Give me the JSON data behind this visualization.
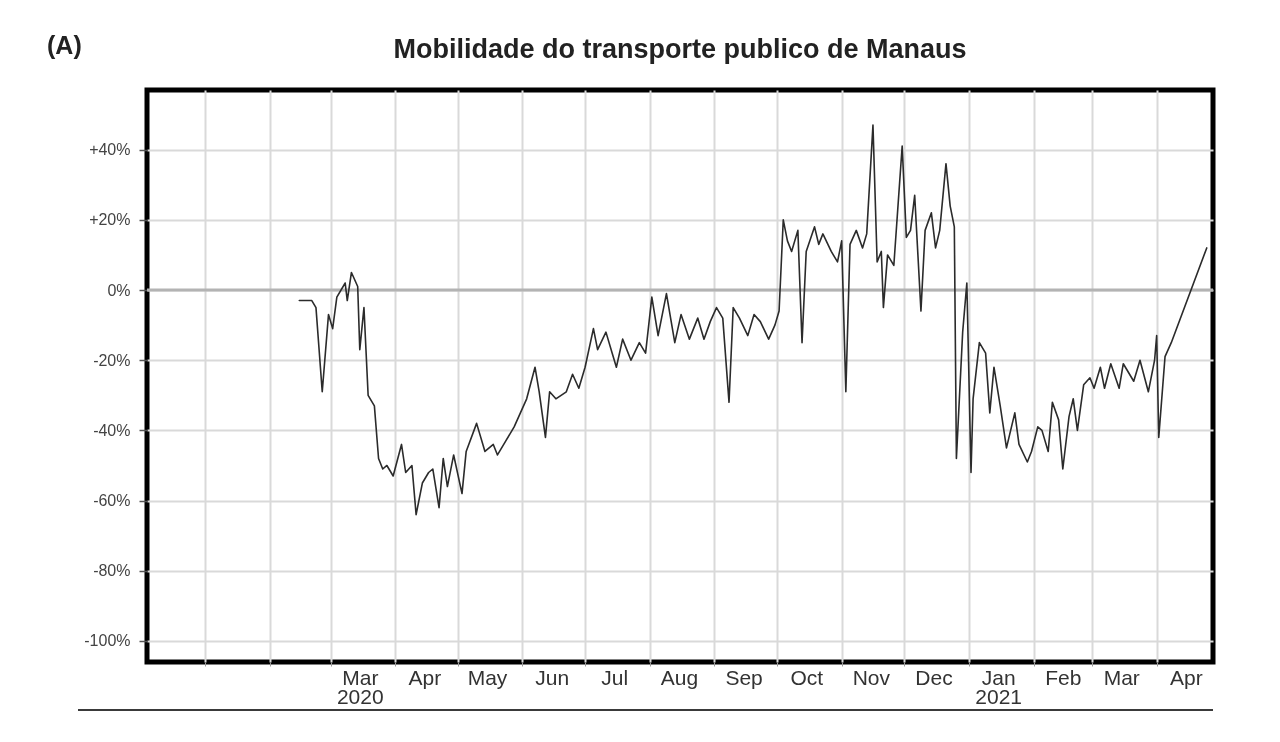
{
  "chart_data": {
    "type": "line",
    "title": "Mobilidade do transporte publico de Manaus",
    "annotations": [
      "(A)"
    ],
    "x": [
      "2020-02-15",
      "2020-02-21",
      "2020-02-23",
      "2020-02-26",
      "2020-02-29",
      "2020-03-02",
      "2020-03-04",
      "2020-03-08",
      "2020-03-09",
      "2020-03-11",
      "2020-03-14",
      "2020-03-15",
      "2020-03-17",
      "2020-03-19",
      "2020-03-22",
      "2020-03-24",
      "2020-03-26",
      "2020-03-28",
      "2020-03-31",
      "2020-04-04",
      "2020-04-06",
      "2020-04-09",
      "2020-04-11",
      "2020-04-14",
      "2020-04-17",
      "2020-04-19",
      "2020-04-22",
      "2020-04-24",
      "2020-04-26",
      "2020-04-29",
      "2020-05-03",
      "2020-05-05",
      "2020-05-10",
      "2020-05-14",
      "2020-05-18",
      "2020-05-20",
      "2020-05-24",
      "2020-05-28",
      "2020-05-31",
      "2020-06-03",
      "2020-06-07",
      "2020-06-09",
      "2020-06-12",
      "2020-06-14",
      "2020-06-17",
      "2020-06-22",
      "2020-06-25",
      "2020-06-28",
      "2020-07-01",
      "2020-07-05",
      "2020-07-07",
      "2020-07-11",
      "2020-07-14",
      "2020-07-16",
      "2020-07-19",
      "2020-07-23",
      "2020-07-27",
      "2020-07-30",
      "2020-08-02",
      "2020-08-05",
      "2020-08-09",
      "2020-08-13",
      "2020-08-16",
      "2020-08-20",
      "2020-08-24",
      "2020-08-27",
      "2020-08-30",
      "2020-09-02",
      "2020-09-05",
      "2020-09-08",
      "2020-09-10",
      "2020-09-13",
      "2020-09-17",
      "2020-09-20",
      "2020-09-23",
      "2020-09-27",
      "2020-09-30",
      "2020-10-02",
      "2020-10-04",
      "2020-10-06",
      "2020-10-08",
      "2020-10-11",
      "2020-10-13",
      "2020-10-15",
      "2020-10-19",
      "2020-10-21",
      "2020-10-23",
      "2020-10-27",
      "2020-10-30",
      "2020-11-01",
      "2020-11-03",
      "2020-11-05",
      "2020-11-08",
      "2020-11-11",
      "2020-11-13",
      "2020-11-16",
      "2020-11-18",
      "2020-11-20",
      "2020-11-21",
      "2020-11-23",
      "2020-11-26",
      "2020-11-30",
      "2020-12-02",
      "2020-12-04",
      "2020-12-06",
      "2020-12-09",
      "2020-12-11",
      "2020-12-14",
      "2020-12-16",
      "2020-12-18",
      "2020-12-21",
      "2020-12-23",
      "2020-12-25",
      "2020-12-26",
      "2020-12-29",
      "2020-12-31",
      "2021-01-02",
      "2021-01-03",
      "2021-01-06",
      "2021-01-09",
      "2021-01-11",
      "2021-01-13",
      "2021-01-16",
      "2021-01-19",
      "2021-01-23",
      "2021-01-25",
      "2021-01-29",
      "2021-01-31",
      "2021-02-03",
      "2021-02-05",
      "2021-02-08",
      "2021-02-10",
      "2021-02-13",
      "2021-02-15",
      "2021-02-18",
      "2021-02-20",
      "2021-02-22",
      "2021-02-25",
      "2021-02-28",
      "2021-03-02",
      "2021-03-05",
      "2021-03-07",
      "2021-03-10",
      "2021-03-14",
      "2021-03-16",
      "2021-03-21",
      "2021-03-24",
      "2021-03-28",
      "2021-03-31",
      "2021-04-01",
      "2021-04-02",
      "2021-04-05",
      "2021-04-08",
      "2021-04-25"
    ],
    "series": [
      {
        "color": "#2b2b2b",
        "values": [
          -3,
          -3,
          -5,
          -29,
          -7,
          -11,
          -2,
          2,
          -3,
          5,
          1,
          -17,
          -5,
          -30,
          -33,
          -48,
          -51,
          -50,
          -53,
          -44,
          -52,
          -50,
          -64,
          -55,
          -52,
          -51,
          -62,
          -48,
          -56,
          -47,
          -58,
          -46,
          -38,
          -46,
          -44,
          -47,
          -43,
          -39,
          -35,
          -31,
          -22,
          -29,
          -42,
          -29,
          -31,
          -29,
          -24,
          -28,
          -22,
          -11,
          -17,
          -12,
          -18,
          -22,
          -14,
          -20,
          -15,
          -18,
          -2,
          -13,
          -1,
          -15,
          -7,
          -14,
          -8,
          -14,
          -9,
          -5,
          -8,
          -32,
          -5,
          -8,
          -13,
          -7,
          -9,
          -14,
          -10,
          -6,
          20,
          14,
          11,
          17,
          -15,
          11,
          18,
          13,
          16,
          11,
          8,
          14,
          -29,
          13,
          17,
          12,
          16,
          47,
          8,
          11,
          -5,
          10,
          7,
          41,
          15,
          17,
          27,
          -6,
          17,
          22,
          12,
          17,
          36,
          24,
          18,
          -48,
          -12,
          2,
          -52,
          -31,
          -15,
          -18,
          -35,
          -22,
          -33,
          -45,
          -35,
          -44,
          -49,
          -46,
          -39,
          -40,
          -46,
          -32,
          -37,
          -51,
          -36,
          -31,
          -40,
          -27,
          -25,
          -28,
          -22,
          -28,
          -21,
          -28,
          -21,
          -26,
          -20,
          -29,
          -20,
          -13,
          -42,
          -19,
          -15,
          12
        ]
      }
    ],
    "xlim": [
      "2019-12-04",
      "2021-04-28"
    ],
    "xticks": [
      {
        "value": "2020-01-01",
        "label": null
      },
      {
        "value": "2020-02-01",
        "label": null
      },
      {
        "value": "2020-03-01",
        "label": null
      },
      {
        "value": "2020-03-15",
        "label": "Mar\n2020"
      },
      {
        "value": "2020-04-01",
        "label": null
      },
      {
        "value": "2020-04-15",
        "label": "Apr"
      },
      {
        "value": "2020-05-01",
        "label": null
      },
      {
        "value": "2020-05-15",
        "label": "May"
      },
      {
        "value": "2020-06-01",
        "label": null
      },
      {
        "value": "2020-06-15",
        "label": "Jun"
      },
      {
        "value": "2020-07-01",
        "label": null
      },
      {
        "value": "2020-07-15",
        "label": "Jul"
      },
      {
        "value": "2020-08-01",
        "label": null
      },
      {
        "value": "2020-08-15",
        "label": "Aug"
      },
      {
        "value": "2020-09-01",
        "label": null
      },
      {
        "value": "2020-09-15",
        "label": "Sep"
      },
      {
        "value": "2020-10-01",
        "label": null
      },
      {
        "value": "2020-10-15",
        "label": "Oct"
      },
      {
        "value": "2020-11-01",
        "label": null
      },
      {
        "value": "2020-11-15",
        "label": "Nov"
      },
      {
        "value": "2020-12-01",
        "label": null
      },
      {
        "value": "2020-12-15",
        "label": "Dec"
      },
      {
        "value": "2021-01-01",
        "label": null
      },
      {
        "value": "2021-01-15",
        "label": "Jan\n2021"
      },
      {
        "value": "2021-02-01",
        "label": null
      },
      {
        "value": "2021-02-15",
        "label": "Feb"
      },
      {
        "value": "2021-03-01",
        "label": null
      },
      {
        "value": "2021-03-15",
        "label": "Mar"
      },
      {
        "value": "2021-04-01",
        "label": null
      },
      {
        "value": "2021-04-15",
        "label": "Apr"
      }
    ],
    "ylim": [
      -106,
      57
    ],
    "yticks": [
      {
        "value": 40,
        "label": "+40%"
      },
      {
        "value": 20,
        "label": "+20%"
      },
      {
        "value": 0,
        "label": "0%"
      },
      {
        "value": -20,
        "label": "-20%"
      },
      {
        "value": -40,
        "label": "-40%"
      },
      {
        "value": -60,
        "label": "-60%"
      },
      {
        "value": -80,
        "label": "-80%"
      },
      {
        "value": -100,
        "label": "-100%"
      }
    ],
    "grid": true,
    "ref_lines": [
      {
        "axis": "y",
        "value": 0,
        "color": "#b3b3b3"
      }
    ]
  }
}
